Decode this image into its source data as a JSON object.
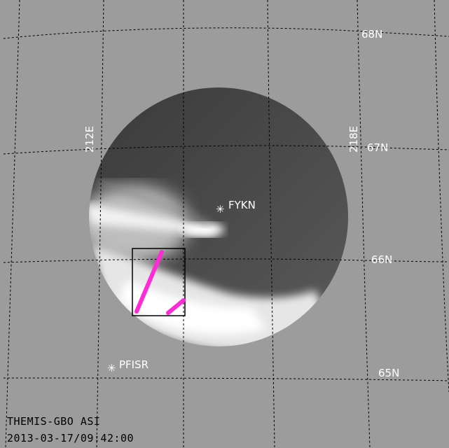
{
  "image": {
    "caption_line1": "THEMIS-GBO ASI",
    "caption_line2": "2013-03-17/09:42:00",
    "background_color": "#9c9c9c",
    "highlight_color": "#ff2bd6"
  },
  "latitude_labels": [
    "68N",
    "67N",
    "66N",
    "65N"
  ],
  "longitude_labels": [
    "212E",
    "218E"
  ],
  "stations": [
    {
      "name": "FYKN"
    },
    {
      "name": "PFISR"
    }
  ]
}
